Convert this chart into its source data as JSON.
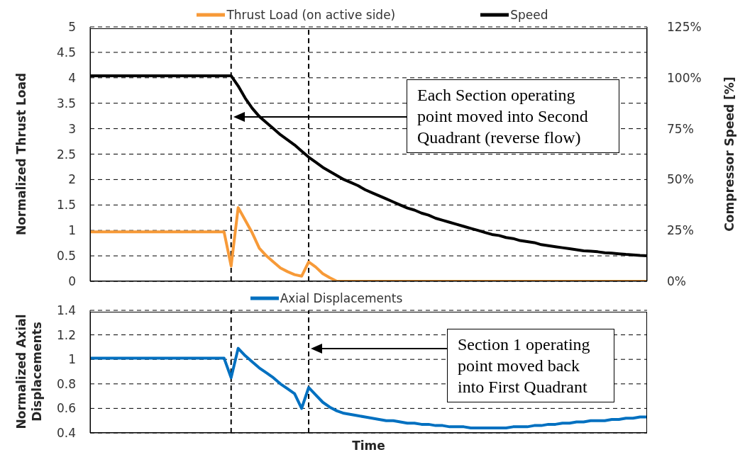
{
  "chart_data": [
    {
      "type": "line",
      "categories": [
        null,
        null,
        null,
        null,
        null,
        null,
        null,
        null,
        null,
        null,
        null,
        null,
        null,
        null,
        null,
        null,
        null,
        null,
        null,
        null,
        null,
        null,
        null,
        null,
        null,
        null,
        null,
        null,
        null,
        null,
        null,
        null,
        null,
        null,
        null,
        null,
        null,
        null,
        null,
        null,
        null,
        null,
        null,
        null,
        null,
        null,
        null,
        null,
        null,
        null,
        null,
        null,
        null,
        null,
        null,
        null,
        null,
        null,
        null,
        null,
        null,
        null,
        null,
        null,
        null,
        null,
        null,
        null,
        null,
        null,
        null,
        null,
        null,
        null,
        null,
        null,
        null,
        null,
        null,
        null
      ],
      "series": [
        {
          "name": "Thrust Load (on active side)",
          "color": "#f79a38",
          "values": [
            0.97,
            0.97,
            0.97,
            0.97,
            0.97,
            0.97,
            0.97,
            0.97,
            0.97,
            0.97,
            0.97,
            0.97,
            0.97,
            0.97,
            0.97,
            0.97,
            0.97,
            0.97,
            0.97,
            0.97,
            0.3,
            1.45,
            1.2,
            0.95,
            0.65,
            0.5,
            0.38,
            0.26,
            0.19,
            0.13,
            0.1,
            0.38,
            0.28,
            0.15,
            0.07,
            0,
            0,
            0,
            0,
            0,
            0,
            0,
            0,
            0,
            0,
            0,
            0,
            0,
            0,
            0,
            0,
            0,
            0,
            0,
            0,
            0,
            0,
            0,
            0,
            0,
            0,
            0,
            0,
            0,
            0,
            0,
            0,
            0,
            0,
            0,
            0,
            0,
            0,
            0,
            0,
            0,
            0,
            0,
            0,
            0
          ]
        },
        {
          "name": "Speed",
          "color": "#000000",
          "axis": "y2",
          "values": [
            101,
            101,
            101,
            101,
            101,
            101,
            101,
            101,
            101,
            101,
            101,
            101,
            101,
            101,
            101,
            101,
            101,
            101,
            101,
            101,
            101,
            96,
            90,
            85,
            81,
            78,
            75,
            72,
            69.5,
            67,
            64,
            61,
            58.5,
            56,
            54,
            52,
            50,
            48.5,
            47,
            45,
            43.5,
            42,
            40.5,
            39,
            37.5,
            36,
            35,
            33.5,
            32.5,
            31,
            30,
            29,
            28,
            27,
            26,
            25,
            24,
            23,
            22.5,
            21.5,
            21,
            20,
            19.5,
            19,
            18,
            17.5,
            17,
            16.5,
            16,
            15.5,
            15,
            14.8,
            14.5,
            14,
            13.8,
            13.5,
            13.2,
            13,
            12.7,
            12.5
          ]
        }
      ],
      "ylabel": "Normalized Thrust Load",
      "y2label": "Compressor Speed [%]",
      "ylim": [
        0,
        5
      ],
      "yticks": [
        0,
        0.5,
        1,
        1.5,
        2,
        2.5,
        3,
        3.5,
        4,
        4.5,
        5
      ],
      "y2lim": [
        0,
        125
      ],
      "y2ticks": [
        {
          "value": 0,
          "label": "0%"
        },
        {
          "value": 25,
          "label": "25%"
        },
        {
          "value": 50,
          "label": "50%"
        },
        {
          "value": 75,
          "label": "75%"
        },
        {
          "value": 100,
          "label": "100%"
        },
        {
          "value": 125,
          "label": "125%"
        }
      ],
      "grid": "y",
      "legend": "top",
      "tick_labels": "y",
      "annotations": [
        "Each Section operating point moved into Second Quadrant (reverse flow)"
      ]
    },
    {
      "type": "line",
      "categories": [
        null,
        null,
        null,
        null,
        null,
        null,
        null,
        null,
        null,
        null,
        null,
        null,
        null,
        null,
        null,
        null,
        null,
        null,
        null,
        null,
        null,
        null,
        null,
        null,
        null,
        null,
        null,
        null,
        null,
        null,
        null,
        null,
        null,
        null,
        null,
        null,
        null,
        null,
        null,
        null,
        null,
        null,
        null,
        null,
        null,
        null,
        null,
        null,
        null,
        null,
        null,
        null,
        null,
        null,
        null,
        null,
        null,
        null,
        null,
        null,
        null,
        null,
        null,
        null,
        null,
        null,
        null,
        null,
        null,
        null,
        null,
        null,
        null,
        null,
        null,
        null,
        null,
        null,
        null,
        null
      ],
      "series": [
        {
          "name": "Axial Displacements",
          "color": "#0070c0",
          "values": [
            1.01,
            1.01,
            1.01,
            1.01,
            1.01,
            1.01,
            1.01,
            1.01,
            1.01,
            1.01,
            1.01,
            1.01,
            1.01,
            1.01,
            1.01,
            1.01,
            1.01,
            1.01,
            1.01,
            1.01,
            0.85,
            1.09,
            1.03,
            0.98,
            0.93,
            0.89,
            0.85,
            0.8,
            0.76,
            0.72,
            0.6,
            0.77,
            0.71,
            0.65,
            0.61,
            0.58,
            0.56,
            0.55,
            0.54,
            0.53,
            0.52,
            0.51,
            0.5,
            0.5,
            0.49,
            0.48,
            0.48,
            0.47,
            0.47,
            0.46,
            0.46,
            0.45,
            0.45,
            0.45,
            0.44,
            0.44,
            0.44,
            0.44,
            0.44,
            0.44,
            0.45,
            0.45,
            0.45,
            0.46,
            0.46,
            0.47,
            0.47,
            0.48,
            0.48,
            0.49,
            0.49,
            0.5,
            0.5,
            0.5,
            0.51,
            0.51,
            0.52,
            0.52,
            0.53,
            0.53
          ]
        }
      ],
      "xlabel": "Time",
      "ylabel": "Normalized Axial Displacements",
      "ylim": [
        0.4,
        1.4
      ],
      "yticks": [
        0.4,
        0.6,
        0.8,
        1,
        1.2,
        1.4
      ],
      "grid": "y",
      "legend": "top",
      "tick_labels": "y",
      "annotations": [
        "Section 1 operating point moved back into First Quadrant"
      ]
    }
  ]
}
